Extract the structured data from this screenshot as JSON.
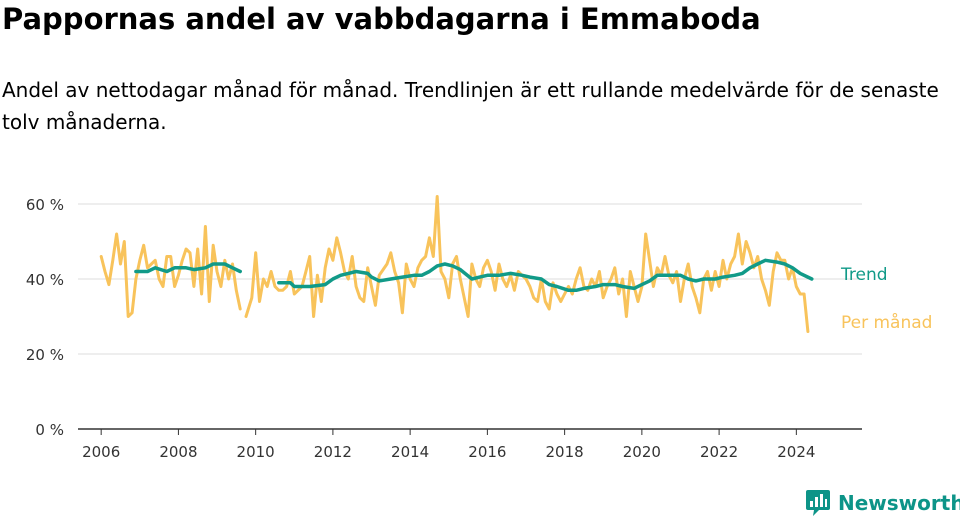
{
  "title": "Pappornas andel av vabbdagarna i Emmaboda",
  "subtitle": "Andel av nettodagar månad för månad. Trendlinjen är ett rullande medelvärde för de senaste tolv månaderna.",
  "brand": {
    "name": "Newsworthy"
  },
  "colors": {
    "trend": "#119a88",
    "monthly": "#f8c35b",
    "grid": "#dddddd",
    "axis": "#333333"
  },
  "chart_data": {
    "type": "line",
    "x_unit": "year",
    "xlim": [
      2005.4,
      2025.7
    ],
    "ylim": [
      0,
      60
    ],
    "x_ticks": [
      2006,
      2008,
      2010,
      2012,
      2014,
      2016,
      2018,
      2020,
      2022,
      2024
    ],
    "y_ticks": [
      0,
      20,
      40,
      60
    ],
    "y_tick_labels": [
      "0 %",
      "20 %",
      "40 %",
      "60 %"
    ],
    "grid": true,
    "series": [
      {
        "name": "Trend",
        "color": "#119a88",
        "points": [
          [
            2006.9,
            42
          ],
          [
            2007.2,
            42
          ],
          [
            2007.4,
            43
          ],
          [
            2007.7,
            42
          ],
          [
            2007.9,
            43
          ],
          [
            2008.2,
            43
          ],
          [
            2008.4,
            42.5
          ],
          [
            2008.7,
            43
          ],
          [
            2008.9,
            44
          ],
          [
            2009.2,
            44
          ],
          [
            2009.4,
            43
          ],
          [
            2009.6,
            42
          ],
          null,
          [
            2010.6,
            39
          ],
          [
            2010.9,
            39
          ],
          [
            2011.0,
            38
          ],
          [
            2011.4,
            38
          ],
          [
            2011.8,
            38.5
          ],
          [
            2012.0,
            40
          ],
          [
            2012.2,
            41
          ],
          [
            2012.4,
            41.5
          ],
          [
            2012.6,
            42
          ],
          [
            2012.9,
            41.5
          ],
          [
            2013.0,
            40.5
          ],
          [
            2013.2,
            39.5
          ],
          [
            2013.5,
            40
          ],
          [
            2013.8,
            40.5
          ],
          [
            2014.1,
            41
          ],
          [
            2014.3,
            41
          ],
          [
            2014.5,
            42
          ],
          [
            2014.7,
            43.5
          ],
          [
            2014.9,
            44
          ],
          [
            2015.1,
            43.5
          ],
          [
            2015.3,
            42.5
          ],
          [
            2015.6,
            40
          ],
          [
            2015.8,
            40.5
          ],
          [
            2016.0,
            41
          ],
          [
            2016.3,
            41
          ],
          [
            2016.6,
            41.5
          ],
          [
            2016.9,
            41
          ],
          [
            2017.1,
            40.5
          ],
          [
            2017.4,
            40
          ],
          [
            2017.6,
            38.5
          ],
          [
            2017.8,
            38
          ],
          [
            2018.1,
            37
          ],
          [
            2018.3,
            37
          ],
          [
            2018.5,
            37.5
          ],
          [
            2018.8,
            38
          ],
          [
            2019.0,
            38.5
          ],
          [
            2019.3,
            38.5
          ],
          [
            2019.5,
            38
          ],
          [
            2019.8,
            37.5
          ],
          [
            2020.0,
            38.5
          ],
          [
            2020.2,
            39.5
          ],
          [
            2020.4,
            41
          ],
          [
            2020.7,
            41
          ],
          [
            2021.0,
            41
          ],
          [
            2021.2,
            40
          ],
          [
            2021.4,
            39.5
          ],
          [
            2021.6,
            40
          ],
          [
            2021.9,
            40
          ],
          [
            2022.1,
            40.5
          ],
          [
            2022.4,
            41
          ],
          [
            2022.6,
            41.5
          ],
          [
            2022.8,
            43
          ],
          [
            2023.0,
            44
          ],
          [
            2023.2,
            45
          ],
          [
            2023.5,
            44.5
          ],
          [
            2023.7,
            44
          ],
          [
            2023.9,
            43
          ],
          [
            2024.1,
            41.5
          ],
          [
            2024.4,
            40
          ]
        ]
      },
      {
        "name": "Per månad",
        "color": "#f8c35b",
        "points": [
          [
            2006.0,
            46
          ],
          [
            2006.1,
            42
          ],
          [
            2006.2,
            38.5
          ],
          [
            2006.3,
            45
          ],
          [
            2006.4,
            52
          ],
          [
            2006.5,
            44
          ],
          [
            2006.6,
            50
          ],
          [
            2006.7,
            30
          ],
          [
            2006.8,
            31
          ],
          [
            2006.9,
            40
          ],
          [
            2007.0,
            45
          ],
          [
            2007.1,
            49
          ],
          [
            2007.2,
            43
          ],
          [
            2007.3,
            44
          ],
          [
            2007.4,
            45
          ],
          [
            2007.5,
            40
          ],
          [
            2007.6,
            38
          ],
          [
            2007.7,
            46
          ],
          [
            2007.8,
            46
          ],
          [
            2007.9,
            38
          ],
          [
            2008.0,
            41
          ],
          [
            2008.1,
            45
          ],
          [
            2008.2,
            48
          ],
          [
            2008.3,
            47
          ],
          [
            2008.4,
            38
          ],
          [
            2008.5,
            48
          ],
          [
            2008.6,
            36
          ],
          [
            2008.7,
            54
          ],
          [
            2008.8,
            34
          ],
          [
            2008.9,
            49
          ],
          [
            2009.0,
            42
          ],
          [
            2009.1,
            38
          ],
          [
            2009.2,
            45
          ],
          [
            2009.3,
            40
          ],
          [
            2009.4,
            44
          ],
          [
            2009.5,
            37
          ],
          [
            2009.6,
            32
          ],
          null,
          [
            2009.75,
            30
          ],
          [
            2009.9,
            35
          ],
          [
            2010.0,
            47
          ],
          [
            2010.1,
            34
          ],
          [
            2010.2,
            40
          ],
          [
            2010.3,
            38
          ],
          [
            2010.4,
            42
          ],
          [
            2010.5,
            38
          ],
          [
            2010.6,
            37
          ],
          [
            2010.7,
            37
          ],
          [
            2010.8,
            38
          ],
          [
            2010.9,
            42
          ],
          [
            2011.0,
            36
          ],
          [
            2011.2,
            38
          ],
          [
            2011.3,
            42
          ],
          [
            2011.4,
            46
          ],
          [
            2011.5,
            30
          ],
          [
            2011.6,
            41
          ],
          [
            2011.7,
            34
          ],
          [
            2011.8,
            43
          ],
          [
            2011.9,
            48
          ],
          [
            2012.0,
            45
          ],
          [
            2012.1,
            51
          ],
          [
            2012.2,
            47
          ],
          [
            2012.3,
            42
          ],
          [
            2012.4,
            40
          ],
          [
            2012.5,
            46
          ],
          [
            2012.6,
            38
          ],
          [
            2012.7,
            35
          ],
          [
            2012.8,
            34
          ],
          [
            2012.9,
            43
          ],
          [
            2013.0,
            38
          ],
          [
            2013.1,
            33
          ],
          [
            2013.2,
            41
          ],
          [
            2013.4,
            44
          ],
          [
            2013.5,
            47
          ],
          [
            2013.6,
            42
          ],
          [
            2013.7,
            39
          ],
          [
            2013.8,
            31
          ],
          [
            2013.9,
            44
          ],
          [
            2014.0,
            40
          ],
          [
            2014.1,
            38
          ],
          [
            2014.2,
            43
          ],
          [
            2014.3,
            45
          ],
          [
            2014.4,
            46
          ],
          [
            2014.5,
            51
          ],
          [
            2014.6,
            46
          ],
          [
            2014.7,
            62
          ],
          [
            2014.8,
            42
          ],
          [
            2014.9,
            40
          ],
          [
            2015.0,
            35
          ],
          [
            2015.1,
            44
          ],
          [
            2015.2,
            46
          ],
          [
            2015.3,
            40
          ],
          [
            2015.5,
            30
          ],
          [
            2015.6,
            44
          ],
          [
            2015.7,
            40
          ],
          [
            2015.8,
            38
          ],
          [
            2015.9,
            43
          ],
          [
            2016.0,
            45
          ],
          [
            2016.1,
            42
          ],
          [
            2016.2,
            37
          ],
          [
            2016.3,
            44
          ],
          [
            2016.4,
            40
          ],
          [
            2016.5,
            38
          ],
          [
            2016.6,
            41
          ],
          [
            2016.7,
            37
          ],
          [
            2016.8,
            42
          ],
          [
            2016.9,
            41
          ],
          [
            2017.0,
            40
          ],
          [
            2017.1,
            38
          ],
          [
            2017.2,
            35
          ],
          [
            2017.3,
            34
          ],
          [
            2017.4,
            40
          ],
          [
            2017.5,
            34
          ],
          [
            2017.6,
            32
          ],
          [
            2017.7,
            39
          ],
          [
            2017.8,
            36
          ],
          [
            2017.9,
            34
          ],
          [
            2018.0,
            36
          ],
          [
            2018.1,
            38
          ],
          [
            2018.2,
            36
          ],
          [
            2018.3,
            40
          ],
          [
            2018.4,
            43
          ],
          [
            2018.5,
            38
          ],
          [
            2018.6,
            37
          ],
          [
            2018.7,
            40
          ],
          [
            2018.8,
            38
          ],
          [
            2018.9,
            42
          ],
          [
            2019.0,
            35
          ],
          [
            2019.1,
            38
          ],
          [
            2019.2,
            40
          ],
          [
            2019.3,
            43
          ],
          [
            2019.4,
            36
          ],
          [
            2019.5,
            40
          ],
          [
            2019.6,
            30
          ],
          [
            2019.7,
            42
          ],
          [
            2019.8,
            38
          ],
          [
            2019.9,
            34
          ],
          [
            2020.0,
            38
          ],
          [
            2020.1,
            52
          ],
          [
            2020.2,
            45
          ],
          [
            2020.3,
            38
          ],
          [
            2020.4,
            43
          ],
          [
            2020.5,
            41
          ],
          [
            2020.6,
            46
          ],
          [
            2020.7,
            41
          ],
          [
            2020.8,
            39
          ],
          [
            2020.9,
            42
          ],
          [
            2021.0,
            34
          ],
          [
            2021.1,
            40
          ],
          [
            2021.2,
            44
          ],
          [
            2021.3,
            38
          ],
          [
            2021.4,
            35
          ],
          [
            2021.5,
            31
          ],
          [
            2021.6,
            40
          ],
          [
            2021.7,
            42
          ],
          [
            2021.8,
            37
          ],
          [
            2021.9,
            42
          ],
          [
            2022.0,
            38
          ],
          [
            2022.1,
            45
          ],
          [
            2022.2,
            40
          ],
          [
            2022.3,
            44
          ],
          [
            2022.4,
            46
          ],
          [
            2022.5,
            52
          ],
          [
            2022.6,
            44
          ],
          [
            2022.7,
            50
          ],
          [
            2022.8,
            47
          ],
          [
            2022.9,
            43
          ],
          [
            2023.0,
            46
          ],
          [
            2023.1,
            40
          ],
          [
            2023.2,
            37
          ],
          [
            2023.3,
            33
          ],
          [
            2023.4,
            42
          ],
          [
            2023.5,
            47
          ],
          [
            2023.6,
            45
          ],
          [
            2023.7,
            45
          ],
          [
            2023.8,
            40
          ],
          [
            2023.9,
            43
          ],
          [
            2024.0,
            38
          ],
          [
            2024.1,
            36
          ],
          [
            2024.2,
            36
          ],
          [
            2024.3,
            26
          ]
        ]
      }
    ]
  }
}
